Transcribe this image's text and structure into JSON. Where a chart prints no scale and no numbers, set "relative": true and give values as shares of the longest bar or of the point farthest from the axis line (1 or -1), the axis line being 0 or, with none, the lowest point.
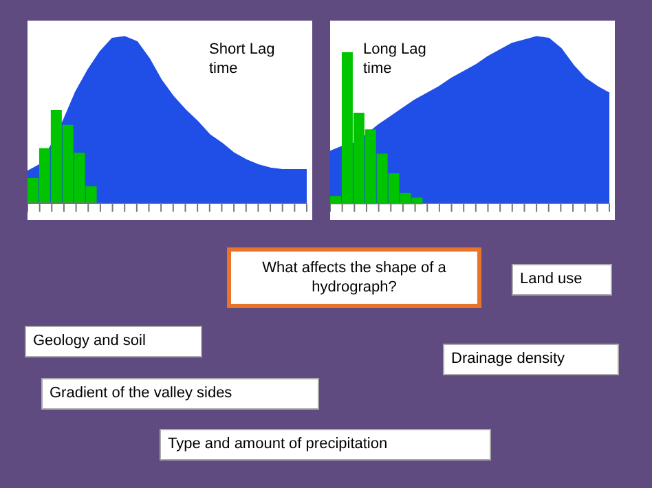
{
  "chart_data": [
    {
      "type": "area",
      "relative": true,
      "annotations": [
        "Short Lag time"
      ],
      "categories": [
        null,
        null,
        null,
        null,
        null,
        null,
        null,
        null,
        null,
        null,
        null,
        null,
        null,
        null,
        null,
        null,
        null,
        null,
        null,
        null,
        null,
        null,
        null,
        null
      ],
      "series": [
        {
          "color": "#1f4fe6",
          "values": [
            0.19,
            0.23,
            0.35,
            0.5,
            0.67,
            0.8,
            0.91,
            0.99,
            1,
            0.97,
            0.87,
            0.74,
            0.64,
            0.56,
            0.49,
            0.41,
            0.36,
            0.3,
            0.26,
            0.23,
            0.21,
            0.2,
            0.2,
            0.2
          ]
        }
      ]
    },
    {
      "type": "bar",
      "relative": true,
      "categories": [
        null,
        null,
        null,
        null,
        null,
        null
      ],
      "series": [
        {
          "color": "#00c400",
          "values": [
            0.27,
            0.59,
            1,
            0.84,
            0.54,
            0.18
          ]
        }
      ]
    },
    {
      "type": "area",
      "relative": true,
      "annotations": [
        "Long Lag time"
      ],
      "categories": [
        null,
        null,
        null,
        null,
        null,
        null,
        null,
        null,
        null,
        null,
        null,
        null,
        null,
        null,
        null,
        null,
        null,
        null,
        null,
        null,
        null,
        null,
        null,
        null
      ],
      "series": [
        {
          "color": "#1f4fe6",
          "values": [
            0.31,
            0.34,
            0.36,
            0.41,
            0.47,
            0.52,
            0.57,
            0.62,
            0.66,
            0.7,
            0.75,
            0.79,
            0.83,
            0.88,
            0.92,
            0.96,
            0.98,
            1,
            0.99,
            0.93,
            0.83,
            0.75,
            0.7,
            0.66
          ]
        }
      ]
    },
    {
      "type": "bar",
      "relative": true,
      "categories": [
        null,
        null,
        null,
        null,
        null,
        null,
        null,
        null
      ],
      "series": [
        {
          "color": "#00c400",
          "values": [
            0.05,
            1,
            0.6,
            0.49,
            0.33,
            0.2,
            0.07,
            0.04
          ]
        }
      ]
    },
    {
      "type": "other",
      "title": "What affects the shape of a hydrograph?",
      "annotations": [
        "Land use",
        "Geology and soil",
        "Drainage density",
        "Gradient of the valley sides",
        "Type and amount of precipitation"
      ]
    }
  ]
}
